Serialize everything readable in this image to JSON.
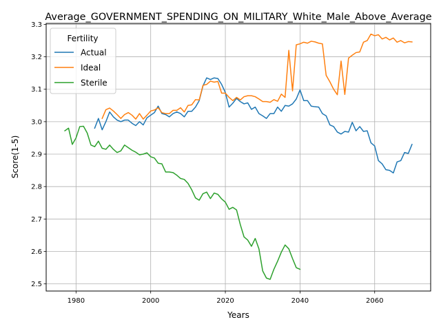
{
  "chart_data": {
    "type": "line",
    "title": "Average_GOVERNMENT_SPENDING_ON_MILITARY_White_Male_Above_Average",
    "xlabel": "Years",
    "ylabel": "Score(1-5)",
    "xlim": [
      1972,
      2075
    ],
    "ylim": [
      2.478,
      3.303
    ],
    "x_ticks": [
      1980,
      2000,
      2020,
      2040,
      2060
    ],
    "y_ticks": [
      2.5,
      2.6,
      2.7,
      2.8,
      2.9,
      3.0,
      3.1,
      3.2,
      3.3
    ],
    "x_tick_labels": [
      "1980",
      "2000",
      "2020",
      "2040",
      "2060"
    ],
    "y_tick_labels": [
      "2.5",
      "2.6",
      "2.7",
      "2.8",
      "2.9",
      "3.0",
      "3.1",
      "3.2",
      "3.3"
    ],
    "grid": true,
    "legend": {
      "title": "Fertility",
      "position": "top-left"
    },
    "series": [
      {
        "name": "Actual",
        "color": "#1f77b4",
        "x": [
          1985,
          1986,
          1987,
          1988,
          1989,
          1990,
          1991,
          1992,
          1993,
          1994,
          1995,
          1996,
          1997,
          1998,
          1999,
          2000,
          2001,
          2002,
          2003,
          2004,
          2005,
          2006,
          2007,
          2008,
          2009,
          2010,
          2011,
          2012,
          2013,
          2014,
          2015,
          2016,
          2017,
          2018,
          2019,
          2020,
          2021,
          2022,
          2023,
          2024,
          2025,
          2026,
          2027,
          2028,
          2029,
          2030,
          2031,
          2032,
          2033,
          2034,
          2035,
          2036,
          2037,
          2038,
          2039,
          2040,
          2041,
          2042,
          2043,
          2044,
          2045,
          2046,
          2047,
          2048,
          2049,
          2050,
          2051,
          2052,
          2053,
          2054,
          2055,
          2056,
          2057,
          2058,
          2059,
          2060,
          2061,
          2062,
          2063,
          2064,
          2065,
          2066,
          2067,
          2068,
          2069,
          2070
        ],
        "y": [
          2.98,
          3.01,
          2.975,
          3.0,
          3.03,
          3.015,
          3.005,
          3.0,
          3.005,
          3.005,
          2.995,
          2.988,
          3.0,
          2.99,
          3.012,
          3.02,
          3.028,
          3.048,
          3.025,
          3.022,
          3.015,
          3.025,
          3.03,
          3.025,
          3.015,
          3.032,
          3.032,
          3.045,
          3.065,
          3.11,
          3.135,
          3.13,
          3.135,
          3.133,
          3.115,
          3.09,
          3.045,
          3.057,
          3.072,
          3.062,
          3.055,
          3.058,
          3.038,
          3.045,
          3.025,
          3.018,
          3.01,
          3.025,
          3.025,
          3.045,
          3.032,
          3.05,
          3.048,
          3.055,
          3.07,
          3.098,
          3.065,
          3.065,
          3.048,
          3.046,
          3.045,
          3.025,
          3.018,
          2.99,
          2.985,
          2.968,
          2.962,
          2.97,
          2.968,
          2.998,
          2.972,
          2.985,
          2.97,
          2.972,
          2.935,
          2.925,
          2.88,
          2.87,
          2.852,
          2.85,
          2.842,
          2.876,
          2.88,
          2.905,
          2.902,
          2.93
        ]
      },
      {
        "name": "Ideal",
        "color": "#ff7f0e",
        "x": [
          1987,
          1988,
          1989,
          1990,
          1991,
          1992,
          1993,
          1994,
          1995,
          1996,
          1997,
          1998,
          1999,
          2000,
          2001,
          2002,
          2003,
          2004,
          2005,
          2006,
          2007,
          2008,
          2009,
          2010,
          2011,
          2012,
          2013,
          2014,
          2015,
          2016,
          2017,
          2018,
          2019,
          2020,
          2021,
          2022,
          2023,
          2024,
          2025,
          2026,
          2027,
          2028,
          2029,
          2030,
          2031,
          2032,
          2033,
          2034,
          2035,
          2036,
          2037,
          2038,
          2039,
          2040,
          2041,
          2042,
          2043,
          2044,
          2045,
          2046,
          2047,
          2048,
          2049,
          2050,
          2051,
          2052,
          2053,
          2054,
          2055,
          2056,
          2057,
          2058,
          2059,
          2060,
          2061,
          2062,
          2063,
          2064,
          2065,
          2066,
          2067,
          2068,
          2069,
          2070
        ],
        "y": [
          3.01,
          3.037,
          3.042,
          3.033,
          3.022,
          3.01,
          3.022,
          3.028,
          3.02,
          3.008,
          3.025,
          3.008,
          3.02,
          3.033,
          3.036,
          3.043,
          3.028,
          3.025,
          3.025,
          3.035,
          3.035,
          3.043,
          3.03,
          3.05,
          3.052,
          3.068,
          3.067,
          3.112,
          3.115,
          3.125,
          3.122,
          3.124,
          3.088,
          3.088,
          3.075,
          3.065,
          3.075,
          3.067,
          3.077,
          3.08,
          3.08,
          3.077,
          3.07,
          3.062,
          3.062,
          3.06,
          3.068,
          3.063,
          3.085,
          3.075,
          3.22,
          3.095,
          3.237,
          3.24,
          3.245,
          3.242,
          3.248,
          3.246,
          3.242,
          3.24,
          3.143,
          3.123,
          3.1,
          3.083,
          3.187,
          3.084,
          3.196,
          3.205,
          3.213,
          3.215,
          3.245,
          3.25,
          3.27,
          3.265,
          3.268,
          3.255,
          3.26,
          3.252,
          3.258,
          3.245,
          3.25,
          3.243,
          3.247,
          3.246
        ]
      },
      {
        "name": "Sterile",
        "color": "#2ca02c",
        "x": [
          1977,
          1978,
          1979,
          1980,
          1981,
          1982,
          1983,
          1984,
          1985,
          1986,
          1987,
          1988,
          1989,
          1990,
          1991,
          1992,
          1993,
          1994,
          1995,
          1996,
          1997,
          1998,
          1999,
          2000,
          2001,
          2002,
          2003,
          2004,
          2005,
          2006,
          2007,
          2008,
          2009,
          2010,
          2011,
          2012,
          2013,
          2014,
          2015,
          2016,
          2017,
          2018,
          2019,
          2020,
          2021,
          2022,
          2023,
          2024,
          2025,
          2026,
          2027,
          2028,
          2029,
          2030,
          2031,
          2032,
          2033,
          2034,
          2035,
          2036,
          2037,
          2038,
          2039,
          2040
        ],
        "y": [
          2.972,
          2.98,
          2.93,
          2.95,
          2.985,
          2.986,
          2.965,
          2.928,
          2.923,
          2.94,
          2.918,
          2.915,
          2.928,
          2.915,
          2.905,
          2.91,
          2.928,
          2.92,
          2.912,
          2.906,
          2.898,
          2.9,
          2.904,
          2.892,
          2.888,
          2.872,
          2.87,
          2.845,
          2.845,
          2.843,
          2.835,
          2.825,
          2.822,
          2.81,
          2.79,
          2.765,
          2.758,
          2.778,
          2.783,
          2.763,
          2.78,
          2.776,
          2.762,
          2.752,
          2.73,
          2.736,
          2.728,
          2.683,
          2.645,
          2.635,
          2.616,
          2.64,
          2.608,
          2.54,
          2.518,
          2.514,
          2.545,
          2.57,
          2.598,
          2.62,
          2.608,
          2.578,
          2.55,
          2.545
        ]
      }
    ]
  }
}
